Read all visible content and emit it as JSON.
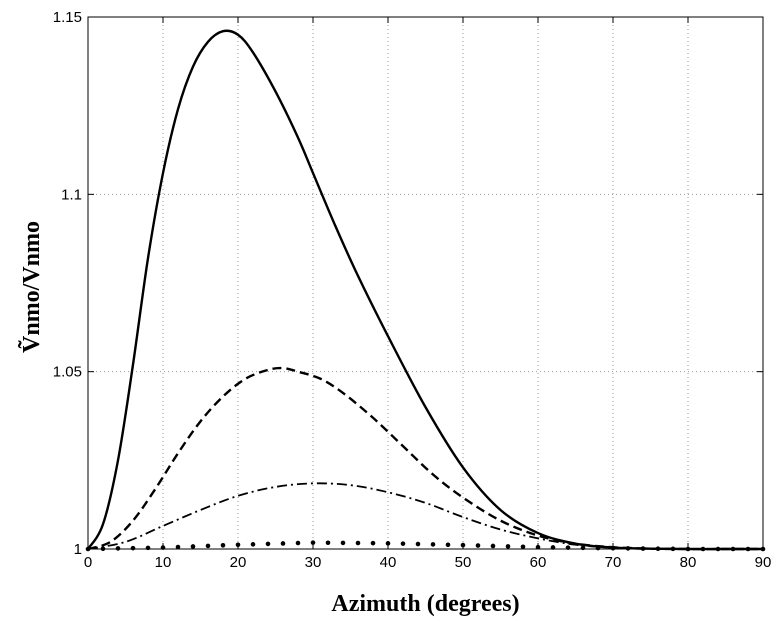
{
  "chart_data": {
    "type": "line",
    "title": "",
    "xlabel": "Azimuth  (degrees)",
    "ylabel": "Ṽnmo/Vnmo",
    "xlim": [
      0,
      90
    ],
    "ylim": [
      1.0,
      1.15
    ],
    "xticks": [
      "0",
      "10",
      "20",
      "30",
      "40",
      "50",
      "60",
      "70",
      "80",
      "90"
    ],
    "yticks": [
      "1",
      "1.05",
      "1.1",
      "1.15"
    ],
    "grid": true,
    "legend": "none",
    "series": [
      {
        "style": "solid",
        "x": [
          0,
          2,
          4,
          6,
          8,
          10,
          12,
          14,
          16,
          18,
          20,
          22,
          25,
          28,
          30,
          33,
          36,
          40,
          45,
          50,
          55,
          60,
          65,
          70,
          75,
          80,
          85,
          90
        ],
        "y": [
          1.0,
          1.007,
          1.025,
          1.052,
          1.082,
          1.106,
          1.124,
          1.136,
          1.143,
          1.146,
          1.145,
          1.14,
          1.129,
          1.116,
          1.106,
          1.091,
          1.077,
          1.06,
          1.04,
          1.023,
          1.011,
          1.0045,
          1.0015,
          1.0004,
          1.0001,
          1.0,
          1.0,
          1.0
        ]
      },
      {
        "style": "dashed",
        "x": [
          0,
          3,
          6,
          9,
          12,
          15,
          18,
          21,
          24,
          26,
          28,
          31,
          34,
          38,
          42,
          46,
          50,
          55,
          60,
          65,
          70,
          75,
          80,
          85,
          90
        ],
        "y": [
          1.0,
          1.002,
          1.008,
          1.017,
          1.027,
          1.036,
          1.043,
          1.048,
          1.0505,
          1.051,
          1.05,
          1.048,
          1.044,
          1.037,
          1.029,
          1.021,
          1.0145,
          1.008,
          1.0038,
          1.0015,
          1.0005,
          1.0001,
          1.0,
          1.0,
          1.0
        ]
      },
      {
        "style": "dashdot",
        "x": [
          0,
          5,
          10,
          15,
          20,
          25,
          30,
          35,
          40,
          45,
          50,
          55,
          60,
          65,
          70,
          75,
          80,
          85,
          90
        ],
        "y": [
          1.0,
          1.002,
          1.0065,
          1.011,
          1.015,
          1.0175,
          1.0185,
          1.018,
          1.016,
          1.013,
          1.009,
          1.0055,
          1.003,
          1.0012,
          1.0004,
          1.0001,
          1.0,
          1.0,
          1.0
        ]
      },
      {
        "style": "dotted",
        "x": [
          0,
          10,
          20,
          30,
          40,
          50,
          60,
          70,
          80,
          90
        ],
        "y": [
          1.0,
          1.0004,
          1.0012,
          1.0018,
          1.0016,
          1.0011,
          1.0005,
          1.0002,
          1.0,
          1.0
        ]
      }
    ]
  }
}
